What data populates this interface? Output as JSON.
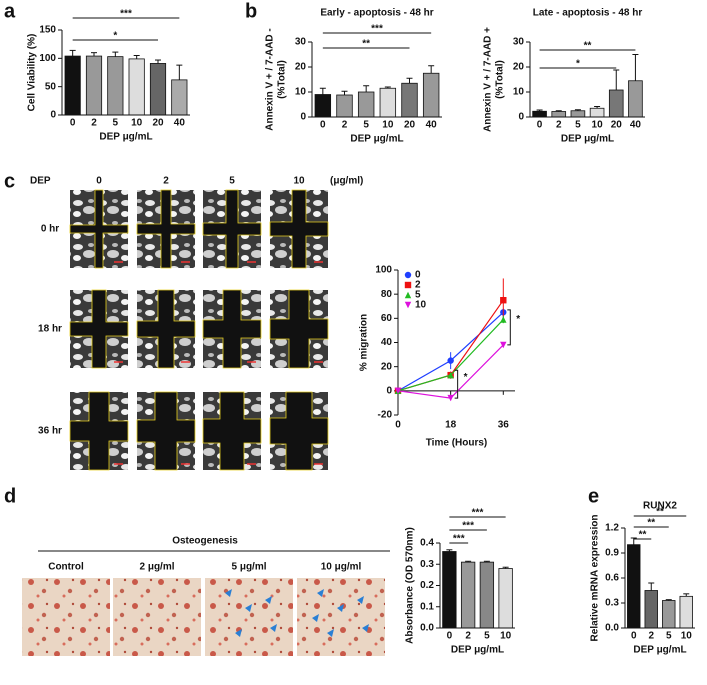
{
  "panel_labels": [
    "a",
    "b",
    "c",
    "d",
    "e"
  ],
  "migration_images": {
    "dep_label": "DEP",
    "unit": "(μg/ml)",
    "doses": [
      "0",
      "2",
      "5",
      "10"
    ],
    "times": [
      "0 hr",
      "18 hr",
      "36 hr"
    ]
  },
  "osteogenesis_images": {
    "title": "Osteogenesis",
    "labels": [
      "Control",
      "2 μg/ml",
      "5 μg/ml",
      "10 μg/ml"
    ]
  },
  "chart_data": [
    {
      "type": "bar",
      "ylabel": [
        "Cell Viability (%)"
      ],
      "xlabel": "DEP  μg/mL",
      "categories": [
        "0",
        "2",
        "5",
        "10",
        "20",
        "40"
      ],
      "values": [
        104,
        104,
        103,
        99,
        91,
        62
      ],
      "errors": [
        10,
        6,
        8,
        6,
        6,
        26
      ],
      "colors": [
        "#111111",
        "#999999",
        "#999999",
        "#dddddd",
        "#666666",
        "#aaaaaa"
      ],
      "ylim": [
        0,
        150
      ],
      "yticks": [
        0,
        50,
        100,
        150
      ],
      "significance": [
        {
          "label": "***",
          "span": [
            "0",
            "40"
          ]
        },
        {
          "label": "*",
          "span": [
            "0",
            "20"
          ]
        }
      ]
    },
    {
      "type": "bar",
      "title": "Early - apoptosis - 48 hr",
      "ylabel": [
        "Annexin V + / 7-AAD -",
        "(%Total)"
      ],
      "xlabel": "DEP μg/mL",
      "categories": [
        "0",
        "2",
        "5",
        "10",
        "20",
        "40"
      ],
      "values": [
        9,
        8.8,
        10,
        11.5,
        13.5,
        17.5
      ],
      "errors": [
        2.5,
        1.5,
        2.5,
        0.5,
        2,
        3
      ],
      "colors": [
        "#111111",
        "#999999",
        "#999999",
        "#dddddd",
        "#777777",
        "#999999"
      ],
      "ylim": [
        0,
        30
      ],
      "yticks": [
        0,
        10,
        20,
        30
      ],
      "significance": [
        {
          "label": "***",
          "span": [
            "0",
            "40"
          ]
        },
        {
          "label": "**",
          "span": [
            "0",
            "20"
          ]
        }
      ]
    },
    {
      "type": "bar",
      "title": "Late - apoptosis - 48 hr",
      "ylabel": [
        "Annexin V + / 7-AAD +",
        "(%Total)"
      ],
      "xlabel": "DEP μg/mL",
      "categories": [
        "0",
        "2",
        "5",
        "10",
        "20",
        "40"
      ],
      "values": [
        2.3,
        2.2,
        2.5,
        3.5,
        10.8,
        14.5
      ],
      "errors": [
        0.5,
        0.3,
        0.4,
        0.7,
        8,
        10.5
      ],
      "colors": [
        "#111111",
        "#999999",
        "#999999",
        "#dddddd",
        "#777777",
        "#999999"
      ],
      "ylim": [
        0,
        30
      ],
      "yticks": [
        0,
        10,
        20,
        30
      ],
      "significance": [
        {
          "label": "**",
          "span": [
            "0",
            "40"
          ]
        },
        {
          "label": "*",
          "span": [
            "0",
            "20"
          ]
        }
      ]
    },
    {
      "type": "line",
      "xlabel": "Time (Hours)",
      "ylabel": [
        "% migration"
      ],
      "x": [
        0,
        18,
        36
      ],
      "xlim": [
        0,
        40
      ],
      "xticks": [
        0,
        18,
        36
      ],
      "ylim": [
        -20,
        100
      ],
      "yticks": [
        -20,
        0,
        20,
        40,
        60,
        80,
        100
      ],
      "legend": "upper-left",
      "series": [
        {
          "name": "0",
          "color": "#1f3fff",
          "marker": "circle",
          "values": [
            0,
            25,
            65
          ],
          "errors": [
            0,
            7,
            3
          ]
        },
        {
          "name": "2",
          "color": "#ee1111",
          "marker": "square",
          "values": [
            0,
            13,
            75
          ],
          "errors": [
            0,
            3,
            18
          ]
        },
        {
          "name": "5",
          "color": "#22bb22",
          "marker": "triangle-up",
          "values": [
            0,
            13,
            59
          ],
          "errors": [
            0,
            2,
            3
          ]
        },
        {
          "name": "10",
          "color": "#dd11dd",
          "marker": "triangle-down",
          "values": [
            0,
            -6,
            38
          ],
          "errors": [
            0,
            2,
            2
          ]
        }
      ],
      "annotations": [
        {
          "text": "*",
          "x": 18
        },
        {
          "text": "*",
          "x": 36
        }
      ]
    },
    {
      "type": "bar",
      "ylabel": [
        "Absorbance (OD 570nm)"
      ],
      "xlabel": "DEP μg/mL",
      "categories": [
        "0",
        "2",
        "5",
        "10"
      ],
      "values": [
        0.36,
        0.31,
        0.31,
        0.28
      ],
      "errors": [
        0.008,
        0.004,
        0.004,
        0.006
      ],
      "colors": [
        "#111111",
        "#999999",
        "#888888",
        "#dddddd"
      ],
      "ylim": [
        0,
        0.4
      ],
      "yticks": [
        {
          "value": 0,
          "label": "0.0"
        },
        0.1,
        0.2,
        0.3,
        0.4
      ],
      "significance": [
        {
          "label": "***",
          "span": [
            "0",
            "10"
          ]
        },
        {
          "label": "***",
          "span": [
            "0",
            "5"
          ]
        },
        {
          "label": "***",
          "span": [
            "0",
            "2"
          ]
        }
      ]
    },
    {
      "type": "bar",
      "title": "RUNX2",
      "ylabel": [
        "Relative mRNA expression"
      ],
      "xlabel": "DEP μg/mL",
      "categories": [
        "0",
        "2",
        "5",
        "10"
      ],
      "values": [
        1.0,
        0.45,
        0.33,
        0.38
      ],
      "errors": [
        0.08,
        0.09,
        0.01,
        0.03
      ],
      "colors": [
        "#111111",
        "#666666",
        "#999999",
        "#dddddd"
      ],
      "ylim": [
        0,
        1.2
      ],
      "yticks": [
        {
          "value": 0,
          "label": "0.0"
        },
        0.3,
        0.6,
        0.9,
        1.2
      ],
      "significance": [
        {
          "label": "**",
          "span": [
            "0",
            "10"
          ]
        },
        {
          "label": "**",
          "span": [
            "0",
            "5"
          ]
        },
        {
          "label": "**",
          "span": [
            "0",
            "2"
          ]
        }
      ]
    }
  ]
}
